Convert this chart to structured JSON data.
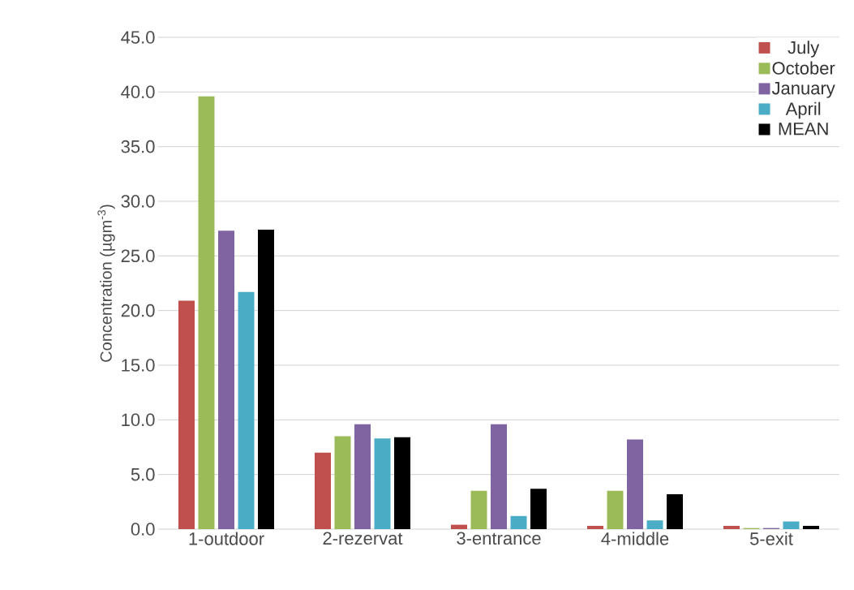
{
  "chart_data": {
    "type": "bar",
    "ylabel": "Concentration (µgm$^{-3}$)",
    "categories": [
      "1-outdoor",
      "2-rezervat",
      "3-entrance",
      "4-middle",
      "5-exit"
    ],
    "series": [
      {
        "name": "July",
        "color": "#c0504d",
        "values": [
          20.9,
          7.0,
          0.4,
          0.3,
          0.3
        ]
      },
      {
        "name": "October",
        "color": "#9bbb59",
        "values": [
          39.6,
          8.5,
          3.5,
          3.5,
          0.1
        ]
      },
      {
        "name": "January",
        "color": "#8064a2",
        "values": [
          27.3,
          9.6,
          9.6,
          8.2,
          0.1
        ]
      },
      {
        "name": "April",
        "color": "#4bacc6",
        "values": [
          21.7,
          8.3,
          1.2,
          0.8,
          0.7
        ]
      },
      {
        "name": "MEAN",
        "color": "#000000",
        "values": [
          27.4,
          8.4,
          3.7,
          3.2,
          0.3
        ]
      }
    ],
    "ylim": [
      0,
      45
    ],
    "yticks": [
      {
        "value": 0,
        "label": "0.0"
      },
      {
        "value": 5,
        "label": "5.0"
      },
      {
        "value": 10,
        "label": "10.0"
      },
      {
        "value": 15,
        "label": "15.0"
      },
      {
        "value": 20,
        "label": "20.0"
      },
      {
        "value": 25,
        "label": "25.0"
      },
      {
        "value": 30,
        "label": "30.0"
      },
      {
        "value": 35,
        "label": "35.0"
      },
      {
        "value": 40,
        "label": "40.0"
      },
      {
        "value": 45,
        "label": "45.0"
      }
    ],
    "grid": "y",
    "legend": "top right"
  }
}
